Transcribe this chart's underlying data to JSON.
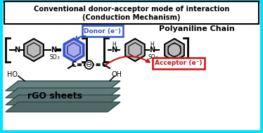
{
  "title_line1": "Conventional donor-acceptor mode of interaction",
  "title_line2": "(Conduction Mechanism)",
  "polyaniline_label": "Polyaniline Chain",
  "donor_label": "Donor (e⁻)",
  "acceptor_label": "Acceptor (e⁻)",
  "rgo_label": "rGO sheets",
  "bg_color": "#ffffff",
  "border_color": "#00e0ff",
  "title_box_color": "#ffffff",
  "title_box_edge": "#000000",
  "rgo_color": "#5a7a7a",
  "rgo_edge": "#2a4a4a",
  "donor_box_color": "#ffffff",
  "donor_box_edge": "#3355cc",
  "donor_text_color": "#3355cc",
  "acceptor_box_color": "#ffffff",
  "acceptor_box_edge": "#cc1111",
  "acceptor_text_color": "#cc1111",
  "arrow_donor_color": "#3355cc",
  "arrow_acceptor_color": "#cc1111",
  "hex_fill": "#bbbbbb",
  "hex_fill_blue": "#aaaaee"
}
